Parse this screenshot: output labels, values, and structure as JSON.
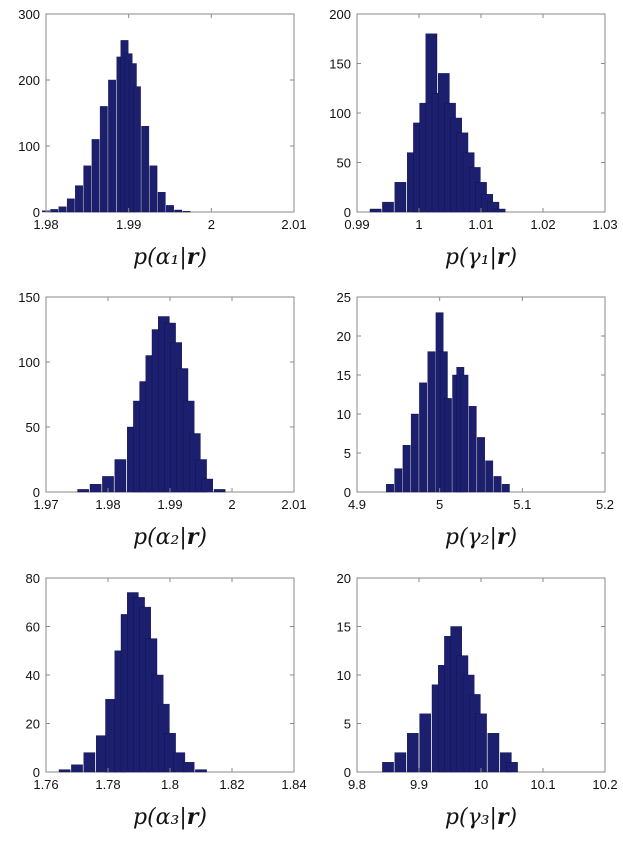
{
  "colors": {
    "bar": "#1c1f6e",
    "bar_edge": "#0d0f4a",
    "frame": "#8a8a8a"
  },
  "chart_data": [
    {
      "type": "bar",
      "xlabel": "p(α₁|r)",
      "xlim": [
        1.98,
        2.01
      ],
      "ylim": [
        0,
        300
      ],
      "xticks": [
        "1.98",
        "1.99",
        "2",
        "2.01"
      ],
      "yticks": [
        "0",
        "100",
        "200",
        "300"
      ],
      "bin_centers": [
        1.98,
        1.981,
        1.982,
        1.983,
        1.984,
        1.985,
        1.986,
        1.987,
        1.988,
        1.989,
        1.9895,
        1.99,
        1.9905,
        1.991,
        1.992,
        1.993,
        1.994,
        1.995,
        1.996,
        1.997
      ],
      "values": [
        2,
        4,
        8,
        20,
        40,
        70,
        110,
        160,
        200,
        235,
        260,
        240,
        225,
        190,
        130,
        70,
        30,
        10,
        3,
        1
      ]
    },
    {
      "type": "bar",
      "xlabel": "p(γ₁|r)",
      "xlim": [
        0.99,
        1.03
      ],
      "ylim": [
        0,
        200
      ],
      "xticks": [
        "0.99",
        "1",
        "1.01",
        "1.02",
        "1.03"
      ],
      "yticks": [
        "0",
        "50",
        "100",
        "150",
        "200"
      ],
      "bin_centers": [
        0.993,
        0.995,
        0.997,
        0.999,
        1.0,
        1.001,
        1.002,
        1.003,
        1.004,
        1.005,
        1.006,
        1.007,
        1.008,
        1.009,
        1.01,
        1.011,
        1.012,
        1.013
      ],
      "values": [
        3,
        10,
        30,
        60,
        90,
        110,
        180,
        120,
        140,
        110,
        95,
        80,
        60,
        45,
        30,
        18,
        10,
        3
      ]
    },
    {
      "type": "bar",
      "xlabel": "p(α₂|r)",
      "xlim": [
        1.97,
        2.01
      ],
      "ylim": [
        0,
        150
      ],
      "xticks": [
        "1.97",
        "1.98",
        "1.99",
        "2",
        "2.01"
      ],
      "yticks": [
        "0",
        "50",
        "100",
        "150"
      ],
      "bin_centers": [
        1.976,
        1.978,
        1.98,
        1.982,
        1.984,
        1.985,
        1.986,
        1.987,
        1.988,
        1.989,
        1.99,
        1.991,
        1.992,
        1.993,
        1.994,
        1.995,
        1.996,
        1.998
      ],
      "values": [
        2,
        6,
        12,
        25,
        50,
        70,
        85,
        105,
        125,
        135,
        130,
        115,
        95,
        70,
        45,
        25,
        10,
        2
      ]
    },
    {
      "type": "bar",
      "xlabel": "p(γ₂|r)",
      "xlim": [
        4.9,
        5.2
      ],
      "ylim": [
        0,
        25
      ],
      "xticks": [
        "4.9",
        "5",
        "5.1",
        "5.2"
      ],
      "yticks": [
        "0",
        "5",
        "10",
        "15",
        "20",
        "25"
      ],
      "bin_centers": [
        4.94,
        4.95,
        4.96,
        4.97,
        4.98,
        4.99,
        5.0,
        5.005,
        5.01,
        5.02,
        5.025,
        5.03,
        5.04,
        5.05,
        5.06,
        5.07,
        5.08
      ],
      "values": [
        1,
        3,
        6,
        10,
        14,
        18,
        23,
        18,
        12,
        15,
        16,
        15,
        11,
        7,
        4,
        2,
        1
      ]
    },
    {
      "type": "bar",
      "xlabel": "p(α₃|r)",
      "xlim": [
        1.76,
        1.84
      ],
      "ylim": [
        0,
        80
      ],
      "xticks": [
        "1.76",
        "1.78",
        "1.8",
        "1.82",
        "1.84"
      ],
      "yticks": [
        "0",
        "20",
        "40",
        "60",
        "80"
      ],
      "bin_centers": [
        1.766,
        1.77,
        1.774,
        1.778,
        1.781,
        1.784,
        1.786,
        1.788,
        1.79,
        1.792,
        1.794,
        1.796,
        1.798,
        1.8,
        1.803,
        1.806,
        1.81
      ],
      "values": [
        1,
        3,
        8,
        15,
        30,
        50,
        65,
        74,
        72,
        68,
        55,
        40,
        28,
        16,
        8,
        4,
        1
      ]
    },
    {
      "type": "bar",
      "xlabel": "p(γ₃|r)",
      "xlim": [
        9.8,
        10.2
      ],
      "ylim": [
        0,
        20
      ],
      "xticks": [
        "9.8",
        "9.9",
        "10",
        "10.1",
        "10.2"
      ],
      "yticks": [
        "0",
        "5",
        "10",
        "15",
        "20"
      ],
      "bin_centers": [
        9.85,
        9.87,
        9.89,
        9.91,
        9.93,
        9.94,
        9.95,
        9.96,
        9.97,
        9.98,
        9.99,
        10.0,
        10.02,
        10.04,
        10.05
      ],
      "values": [
        1,
        2,
        4,
        6,
        9,
        11,
        14,
        15,
        12,
        10,
        8,
        6,
        4,
        2,
        1
      ]
    }
  ]
}
